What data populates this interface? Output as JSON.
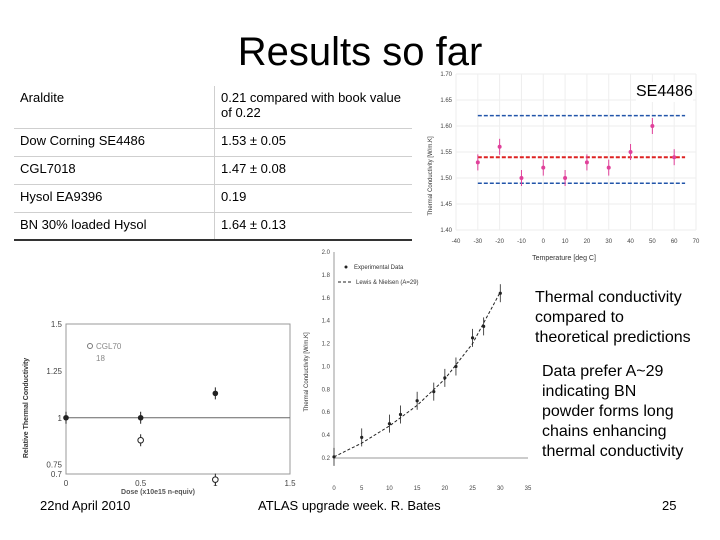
{
  "slide": {
    "title": "Results so far",
    "se_label": "SE4486",
    "note1": [
      "Thermal conductivity",
      "compared to",
      "theoretical predictions"
    ],
    "note2": [
      "Data prefer A~29",
      "indicating BN",
      "powder forms long",
      "chains enhancing",
      "thermal conductivity"
    ],
    "footer_date": "22nd April 2010",
    "footer_event": "ATLAS upgrade week. R. Bates",
    "page_number": "25"
  },
  "table": {
    "rows": [
      {
        "material": "Araldite",
        "value": "0.21 compared with book value of 0.22"
      },
      {
        "material": "Dow Corning SE4486",
        "value": "1.53 ± 0.05"
      },
      {
        "material": "CGL7018",
        "value": "1.47 ± 0.08"
      },
      {
        "material": "Hysol EA9396",
        "value": "0.19"
      },
      {
        "material": "BN 30% loaded Hysol",
        "value": "1.64 ± 0.13"
      }
    ]
  },
  "chart_data": [
    {
      "type": "scatter",
      "xlabel": "Temperature [deg C]",
      "ylabel": "Thermal Conductivity [W/m.K]",
      "xlim": [
        -40,
        70
      ],
      "ylim": [
        1.4,
        1.7
      ],
      "x_ticks": [
        "-40",
        "-30",
        "-20",
        "-10",
        "0",
        "10",
        "20",
        "30",
        "40",
        "50",
        "60",
        "70"
      ],
      "y_ticks": [
        "1.40",
        "1.45",
        "1.50",
        "1.55",
        "1.60",
        "1.65",
        "1.70"
      ],
      "x": [
        -30,
        -20,
        -10,
        0,
        10,
        20,
        30,
        40,
        50,
        60
      ],
      "y": [
        1.53,
        1.56,
        1.5,
        1.52,
        1.5,
        1.53,
        1.52,
        1.55,
        1.6,
        1.54
      ],
      "colors": {
        "points": "#e0409a",
        "mean": "#dd2222",
        "band": "#2255aa"
      },
      "mean_line": 1.54,
      "band": [
        1.49,
        1.62
      ]
    },
    {
      "type": "line",
      "xlabel": "",
      "ylabel": "Thermal Conductivity [W/m.K]",
      "xlim": [
        0,
        35
      ],
      "ylim": [
        0.2,
        2.0
      ],
      "x_ticks": [
        "0",
        "5",
        "10",
        "15",
        "20",
        "25",
        "30",
        "35"
      ],
      "y_ticks": [
        "0.2",
        "0.4",
        "0.6",
        "0.8",
        "1.0",
        "1.2",
        "1.4",
        "1.6",
        "1.8",
        "2.0"
      ],
      "legend": [
        "Experimental Data",
        "Lewis & Nielsen (A=29)"
      ],
      "series": [
        {
          "name": "Experimental Data",
          "x": [
            0,
            5,
            10,
            12,
            15,
            18,
            20,
            22,
            25,
            27,
            30
          ],
          "y": [
            0.21,
            0.38,
            0.5,
            0.58,
            0.7,
            0.78,
            0.9,
            1.0,
            1.25,
            1.35,
            1.64
          ]
        },
        {
          "name": "Lewis & Nielsen (A=29)",
          "x": [
            0,
            5,
            10,
            15,
            20,
            25,
            30
          ],
          "y": [
            0.21,
            0.33,
            0.48,
            0.66,
            0.89,
            1.2,
            1.65
          ]
        }
      ]
    },
    {
      "type": "scatter",
      "xlabel": "Dose (x10e15 n-equiv)",
      "ylabel": "Relative Thermal Conductivity",
      "xlim": [
        0,
        1.5
      ],
      "ylim": [
        0.7,
        1.5
      ],
      "x_ticks": [
        "0",
        "0.5",
        "1",
        "1.5"
      ],
      "y_ticks": [
        "0.7",
        "0.75",
        "1",
        "1.25",
        "1.5"
      ],
      "legend": [
        "CGL70",
        "18"
      ],
      "series": [
        {
          "name": "filled",
          "x": [
            0,
            0.5,
            1.0
          ],
          "y": [
            1.0,
            1.0,
            1.13
          ]
        },
        {
          "name": "open",
          "x": [
            0.5,
            1.0
          ],
          "y": [
            0.88,
            0.67
          ]
        }
      ]
    }
  ]
}
